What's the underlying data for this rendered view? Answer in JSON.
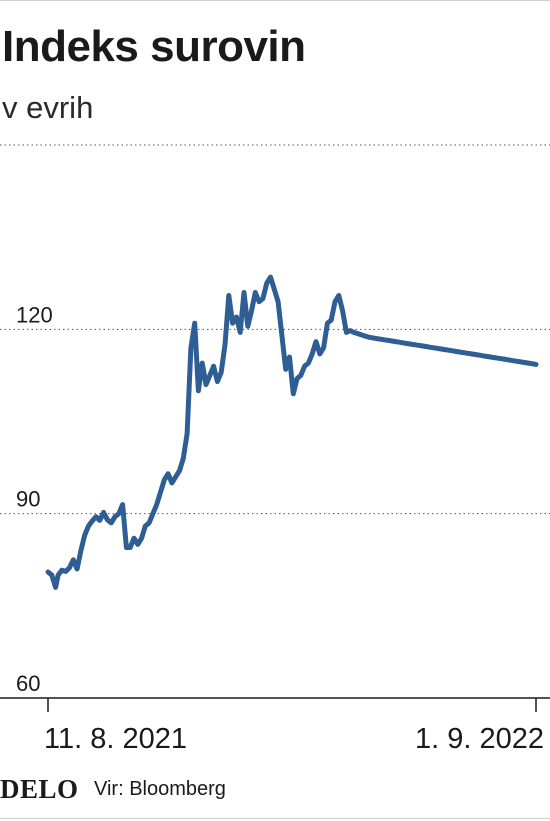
{
  "header": {
    "title": "Indeks surovin",
    "subtitle": "v evrih"
  },
  "footer": {
    "logo": "DELO",
    "source": "Vir: Bloomberg"
  },
  "colors": {
    "line": "#2e5e93",
    "grid": "#555555",
    "axis": "#1a1a1a",
    "text": "#1a1a1a"
  },
  "chart_data": {
    "type": "line",
    "title": "Indeks surovin",
    "subtitle": "v evrih",
    "xlabel": "",
    "ylabel": "",
    "y_ticks": [
      {
        "value": 60,
        "label": "60"
      },
      {
        "value": 90,
        "label": "90"
      },
      {
        "value": 120,
        "label": "120"
      }
    ],
    "ylim": [
      60,
      150
    ],
    "grid": "horizontal dotted",
    "x_ticks": [
      {
        "date": "2021-08-11",
        "label": "11. 8. 2021"
      },
      {
        "date": "2022-09-01",
        "label": "1. 9. 2022"
      }
    ],
    "xlim": [
      "2021-08-11",
      "2022-09-01"
    ],
    "series": [
      {
        "x": [
          "2021-08-11",
          "2021-08-14",
          "2021-08-17",
          "2021-08-19",
          "2021-08-22",
          "2021-08-25",
          "2021-08-28",
          "2021-08-31",
          "2021-09-03",
          "2021-09-06",
          "2021-09-09",
          "2021-09-12",
          "2021-09-15",
          "2021-09-18",
          "2021-09-21",
          "2021-09-24",
          "2021-09-27",
          "2021-09-30",
          "2021-10-03",
          "2021-10-06",
          "2021-10-09",
          "2021-10-12",
          "2021-10-15",
          "2021-10-18",
          "2021-10-21",
          "2021-10-24",
          "2021-10-27",
          "2021-10-30",
          "2021-11-02",
          "2021-11-05",
          "2021-11-08",
          "2021-11-11",
          "2021-11-14",
          "2021-11-17",
          "2021-11-20",
          "2021-11-23",
          "2021-11-26",
          "2021-11-29",
          "2021-12-02",
          "2021-12-05",
          "2021-12-08",
          "2021-12-11",
          "2021-12-14",
          "2021-12-17",
          "2021-12-20",
          "2021-12-23",
          "2021-12-26",
          "2021-12-29",
          "2022-01-01",
          "2022-01-04",
          "2022-01-07",
          "2022-01-10",
          "2022-01-13",
          "2022-01-16",
          "2022-01-19",
          "2022-01-22",
          "2022-01-25",
          "2022-01-28",
          "2022-01-31",
          "2022-02-03",
          "2022-02-06",
          "2022-02-09",
          "2022-02-12",
          "2022-02-15",
          "2022-02-18",
          "2022-02-21",
          "2022-02-24",
          "2022-02-27",
          "2022-03-02",
          "2022-03-05",
          "2022-03-08",
          "2022-03-11",
          "2022-03-14",
          "2022-03-17",
          "2022-03-20",
          "2022-03-23",
          "2022-03-26",
          "2022-03-29",
          "2022-04-01",
          "2022-04-04",
          "2022-04-07",
          "2022-04-10",
          "2022-04-13",
          "2022-04-16",
          "2022-04-19",
          "2022-04-22",
          "2022-04-25",
          "2022-04-28",
          "2022-05-01",
          "2022-05-04",
          "2022-05-07",
          "2022-05-10",
          "2022-05-13",
          "2022-05-16",
          "2022-05-19",
          "2022-05-22",
          "2022-05-25",
          "2022-05-28",
          "2022-05-31",
          "2022-06-03",
          "2022-06-06",
          "2022-06-09",
          "2022-06-12",
          "2022-06-15",
          "2022-06-18",
          "2022-06-21",
          "2022-06-24",
          "2022-06-27",
          "2022-06-30",
          "2022-07-03",
          "2022-07-06",
          "2022-07-09",
          "2022-07-12",
          "2022-07-15",
          "2022-07-18",
          "2022-07-21",
          "2022-07-24",
          "2022-07-27",
          "2022-07-30",
          "2022-08-02",
          "2022-08-05",
          "2022-08-08",
          "2022-08-11",
          "2022-08-14",
          "2022-08-17",
          "2022-08-20",
          "2022-08-23",
          "2022-08-26",
          "2022-08-29",
          "2022-09-01"
        ],
        "y": [
          80.5,
          80.0,
          78.0,
          80.0,
          80.8,
          80.6,
          81.2,
          82.5,
          81.0,
          84.0,
          86.5,
          88.0,
          88.8,
          89.5,
          88.9,
          90.2,
          89.0,
          88.5,
          89.5,
          90.0,
          91.5,
          84.5,
          84.5,
          86.0,
          85.0,
          86.0,
          88.0,
          88.5,
          90.0,
          91.5,
          93.5,
          95.5,
          96.5,
          95.0,
          96.0,
          97.0,
          99.0,
          103.0,
          117.0,
          121.0,
          110.0,
          114.5,
          111.0,
          112.5,
          114.0,
          111.5,
          113.0,
          117.5,
          125.5,
          121.0,
          122.0,
          119.5,
          126.0,
          120.5,
          123.0,
          126.0,
          124.5,
          125.0,
          127.5,
          128.5,
          126.5,
          124.5,
          119.0,
          113.5,
          115.5,
          109.5,
          112.0,
          112.5,
          114.0,
          114.5,
          116.0,
          118.0,
          116.0,
          117.0,
          121.0,
          121.5,
          124.5,
          125.5,
          123.0,
          119.5,
          119.8,
          119.5,
          119.3,
          119.1,
          118.9,
          118.7,
          118.6,
          118.5,
          118.4,
          118.3,
          118.2,
          118.1,
          118.0,
          117.9,
          117.8,
          117.7,
          117.6,
          117.5,
          117.4,
          117.3,
          117.2,
          117.1,
          117.0,
          116.9,
          116.8,
          116.7,
          116.6,
          116.5,
          116.4,
          116.3,
          116.2,
          116.1,
          116.0,
          115.9,
          115.8,
          115.7,
          115.6,
          115.5,
          115.4,
          115.3,
          115.2,
          115.1,
          115.0,
          114.9,
          114.8,
          114.7,
          114.6,
          114.5,
          114.4,
          114.3
        ]
      }
    ]
  }
}
